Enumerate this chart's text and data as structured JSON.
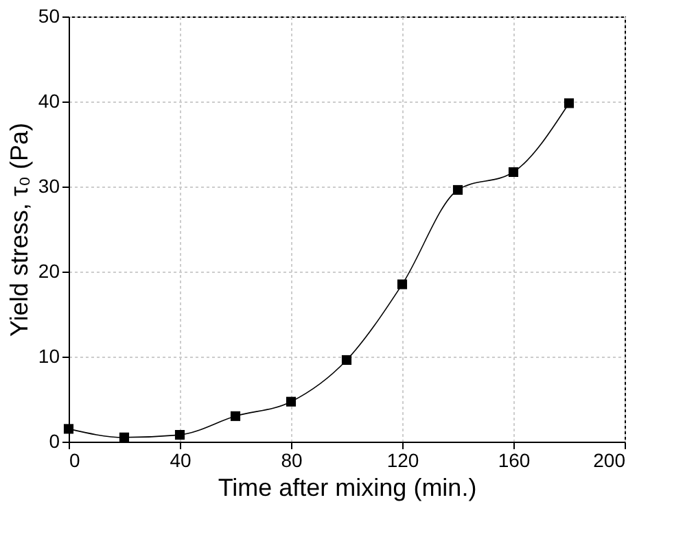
{
  "chart_data": {
    "type": "line",
    "xlabel": "Time after mixing (min.)",
    "ylabel": "Yield stress, τ₀ (Pa)",
    "x": [
      0,
      20,
      40,
      60,
      80,
      100,
      120,
      140,
      160,
      180
    ],
    "series": [
      {
        "color": "#000000",
        "values": [
          1.5,
          0.5,
          0.8,
          3.0,
          4.7,
          9.6,
          18.5,
          29.6,
          31.7,
          39.8
        ]
      }
    ],
    "xlim": [
      0,
      200
    ],
    "xticks": [
      0,
      40,
      80,
      120,
      160,
      200
    ],
    "ylim": [
      0,
      50
    ],
    "yticks": [
      0,
      10,
      20,
      30,
      40,
      50
    ],
    "grid": true,
    "marker": "square",
    "line_style": "solid"
  }
}
